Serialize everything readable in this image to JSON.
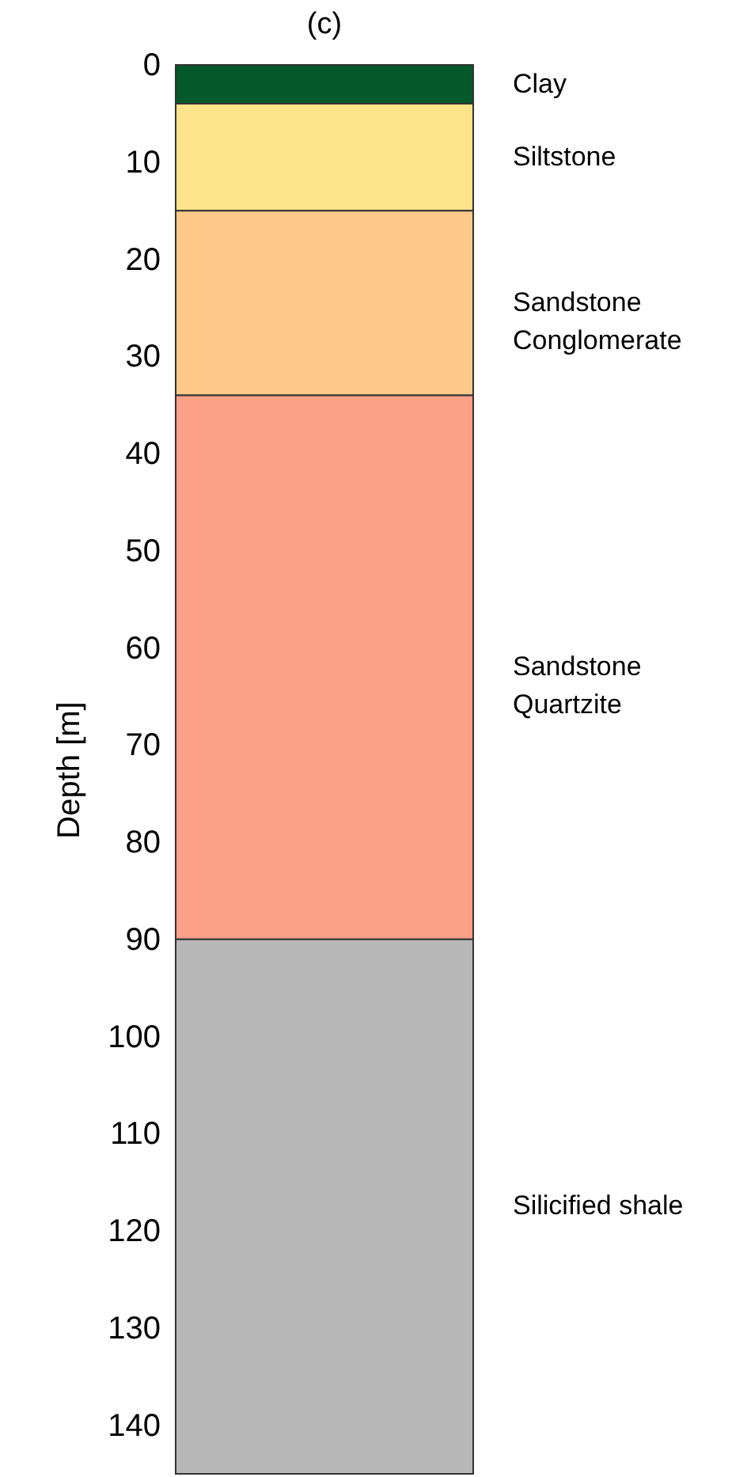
{
  "chart_data": {
    "type": "bar",
    "stacked": true,
    "title": "(c)",
    "ylabel": "Depth [m]",
    "categories": [
      null
    ],
    "ylim": [
      145,
      0
    ],
    "yticks": [
      0,
      10,
      20,
      30,
      40,
      50,
      60,
      70,
      80,
      90,
      100,
      110,
      120,
      130,
      140
    ],
    "tick_labels": "y",
    "series": [
      {
        "name": "Clay",
        "color": "#04592a",
        "values": [
          4
        ]
      },
      {
        "name": "Siltstone",
        "color": "#fde38a",
        "values": [
          11
        ]
      },
      {
        "name": "Sandstone\nConglomerate",
        "color": "#fdca8a",
        "values": [
          19
        ]
      },
      {
        "name": "Sandstone\nQuartzite",
        "color": "#fca088",
        "values": [
          56
        ]
      },
      {
        "name": "Silicified shale",
        "color": "#b8b8b8",
        "values": [
          55
        ]
      }
    ]
  }
}
